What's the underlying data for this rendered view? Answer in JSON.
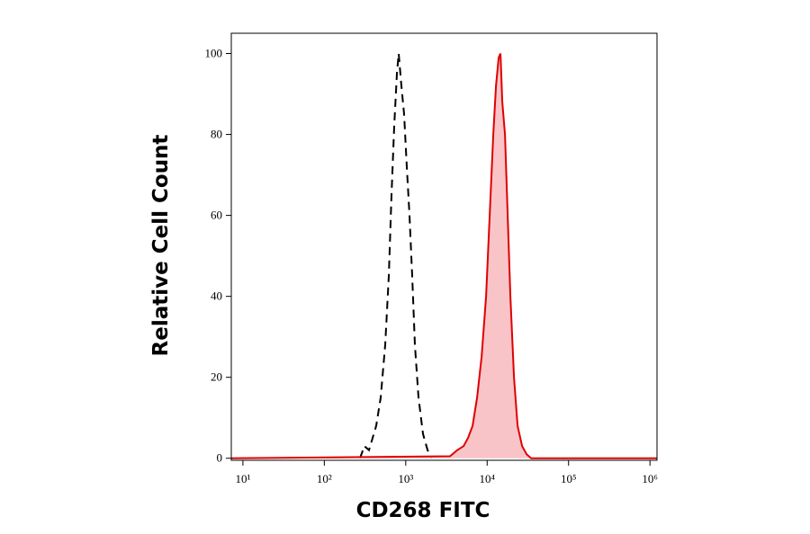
{
  "chart_data": {
    "type": "histogram-overlay",
    "xlabel": "CD268 FITC",
    "ylabel": "Relative Cell Count",
    "xscale": "log",
    "xlim": [
      7.2,
      1220000
    ],
    "ylim": [
      -0.5,
      105
    ],
    "xticks": [
      {
        "value": 10,
        "label": "10¹"
      },
      {
        "value": 100,
        "label": "10²"
      },
      {
        "value": 1000,
        "label": "10³"
      },
      {
        "value": 10000,
        "label": "10⁴"
      },
      {
        "value": 100000,
        "label": "10⁵"
      },
      {
        "value": 1000000,
        "label": "10⁶"
      }
    ],
    "yticks": [
      0,
      20,
      40,
      60,
      80,
      100
    ],
    "series": [
      {
        "color": "#000000",
        "linestyle": "dashed",
        "filled": false,
        "x": [
          274,
          311,
          354,
          434,
          492,
          560,
          620,
          669,
          721,
          779,
          820,
          885,
          955,
          1031,
          1112,
          1202,
          1297,
          1436,
          1630,
          1854,
          2104
        ],
        "values": [
          0,
          3,
          2,
          8,
          15,
          28,
          45,
          65,
          82,
          95,
          100,
          92,
          85,
          72,
          60,
          45,
          28,
          15,
          6,
          2,
          0
        ]
      },
      {
        "color": "#e00000",
        "fill": "#f9c4c8",
        "linestyle": "solid",
        "filled": true,
        "x": [
          7.2,
          3500,
          4295,
          5130,
          5825,
          6620,
          7520,
          8540,
          9710,
          11020,
          11890,
          12830,
          13860,
          14590,
          15350,
          16560,
          17870,
          19280,
          21370,
          23650,
          26870,
          30530,
          34690,
          1220000
        ],
        "values": [
          0,
          0.5,
          2,
          3,
          5,
          8,
          15,
          25,
          40,
          65,
          80,
          92,
          99,
          100,
          88,
          80,
          60,
          40,
          20,
          8,
          3,
          1,
          0,
          0
        ]
      }
    ]
  }
}
